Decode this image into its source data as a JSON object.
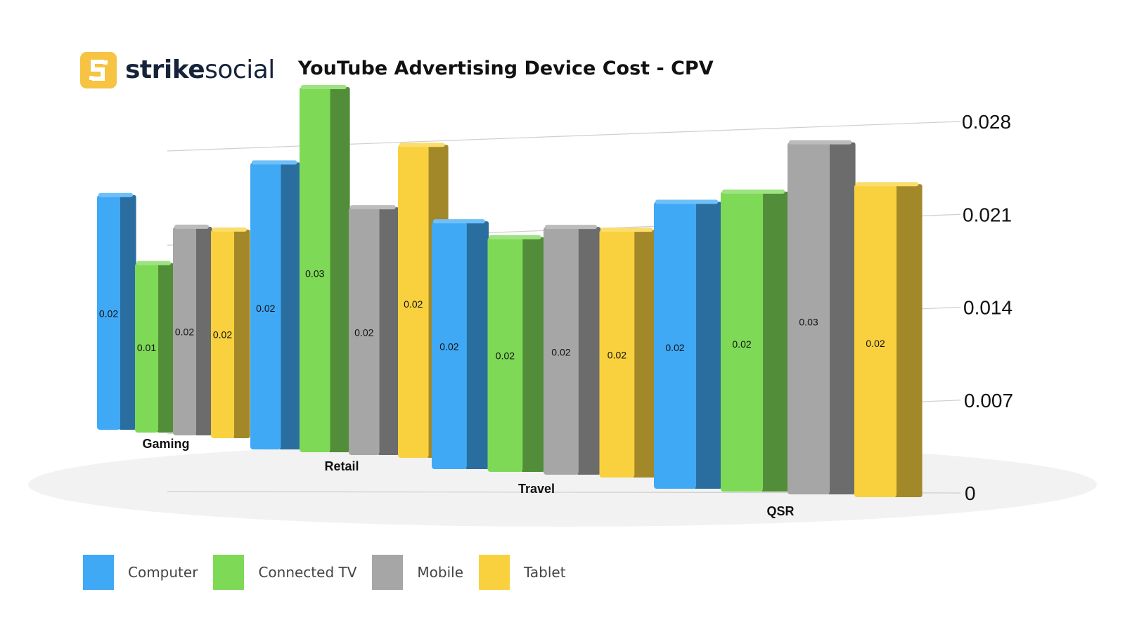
{
  "brand": {
    "name_bold": "strike",
    "name_light": "social",
    "logo_icon": "strike-s-logo-icon",
    "brand_color": "#F6C343"
  },
  "chart_data": {
    "type": "bar",
    "title": "YouTube Advertising Device Cost - CPV",
    "categories": [
      "Gaming",
      "Retail",
      "Travel",
      "QSR"
    ],
    "series": [
      {
        "name": "Computer",
        "color": "#3FA9F5",
        "values": [
          0.018,
          0.022,
          0.019,
          0.022
        ],
        "labels": [
          "0.02",
          "0.02",
          "0.02",
          "0.02"
        ]
      },
      {
        "name": "Connected TV",
        "color": "#7ED957",
        "values": [
          0.013,
          0.028,
          0.018,
          0.023
        ],
        "labels": [
          "0.01",
          "0.03",
          "0.02",
          "0.02"
        ]
      },
      {
        "name": "Mobile",
        "color": "#A6A6A6",
        "values": [
          0.016,
          0.019,
          0.019,
          0.027
        ],
        "labels": [
          "0.02",
          "0.02",
          "0.02",
          "0.03"
        ]
      },
      {
        "name": "Tablet",
        "color": "#F9D13E",
        "values": [
          0.016,
          0.024,
          0.019,
          0.024
        ],
        "labels": [
          "0.02",
          "0.02",
          "0.02",
          "0.02"
        ]
      }
    ],
    "y_ticks": [
      "0",
      "0.007",
      "0.014",
      "0.021",
      "0.028"
    ],
    "ylim": [
      0,
      0.028
    ],
    "grid": true,
    "legend_position": "bottom-left",
    "style": "3d"
  }
}
